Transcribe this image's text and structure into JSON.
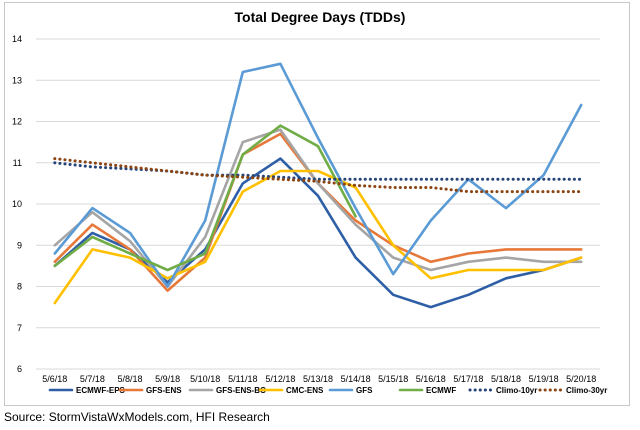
{
  "chart_data": {
    "type": "line",
    "title": "Total Degree Days (TDDs)",
    "xlabel": "",
    "ylabel": "",
    "ylim": [
      6,
      14
    ],
    "yticks": [
      "6",
      "7",
      "8",
      "9",
      "10",
      "11",
      "12",
      "13",
      "14"
    ],
    "grid": true,
    "legend_position": "bottom",
    "categories": [
      "5/6/18",
      "5/7/18",
      "5/8/18",
      "5/9/18",
      "5/10/18",
      "5/11/18",
      "5/12/18",
      "5/13/18",
      "5/14/18",
      "5/15/18",
      "5/16/18",
      "5/17/18",
      "5/18/18",
      "5/19/18",
      "5/20/18"
    ],
    "series": [
      {
        "name": "ECMWF-EPS",
        "color": "#2e5fa6",
        "dash": "solid",
        "values": [
          8.5,
          9.3,
          8.9,
          8.1,
          8.9,
          10.5,
          11.1,
          10.2,
          8.7,
          7.8,
          7.5,
          7.8,
          8.2,
          8.4,
          8.7
        ]
      },
      {
        "name": "GFS-ENS",
        "color": "#e6793a",
        "dash": "solid",
        "values": [
          8.6,
          9.5,
          8.9,
          7.9,
          8.7,
          11.2,
          11.7,
          10.5,
          9.6,
          9.0,
          8.6,
          8.8,
          8.9,
          8.9,
          8.9
        ]
      },
      {
        "name": "GFS-ENS-BC",
        "color": "#a5a5a5",
        "dash": "solid",
        "values": [
          9.0,
          9.8,
          9.1,
          8.0,
          9.2,
          11.5,
          11.8,
          10.5,
          9.5,
          8.7,
          8.4,
          8.6,
          8.7,
          8.6,
          8.6
        ]
      },
      {
        "name": "CMC-ENS",
        "color": "#ffc000",
        "dash": "solid",
        "values": [
          7.6,
          8.9,
          8.7,
          8.2,
          8.6,
          10.3,
          10.8,
          10.8,
          10.4,
          9.0,
          8.2,
          8.4,
          8.4,
          8.4,
          8.7
        ]
      },
      {
        "name": "GFS",
        "color": "#5b9bd5",
        "dash": "solid",
        "values": [
          8.8,
          9.9,
          9.3,
          8.0,
          9.6,
          13.2,
          13.4,
          11.6,
          9.9,
          8.3,
          9.6,
          10.6,
          9.9,
          10.7,
          12.4
        ]
      },
      {
        "name": "ECMWF",
        "color": "#70ad47",
        "dash": "solid",
        "values": [
          8.5,
          9.2,
          8.8,
          8.4,
          8.8,
          11.2,
          11.9,
          11.4,
          9.7,
          null,
          null,
          null,
          null,
          null,
          null
        ]
      },
      {
        "name": "Climo-10yr",
        "color": "#264478",
        "dash": "dotted",
        "values": [
          11.0,
          10.9,
          10.85,
          10.8,
          10.7,
          10.7,
          10.65,
          10.6,
          10.6,
          10.6,
          10.6,
          10.6,
          10.6,
          10.6,
          10.6
        ]
      },
      {
        "name": "Climo-30yr",
        "color": "#8b4513",
        "dash": "dotted",
        "values": [
          11.1,
          11.0,
          10.9,
          10.8,
          10.7,
          10.65,
          10.6,
          10.55,
          10.45,
          10.4,
          10.4,
          10.3,
          10.3,
          10.3,
          10.3
        ]
      }
    ]
  },
  "source": "Source: StormVistaWxModels.com, HFI Research"
}
